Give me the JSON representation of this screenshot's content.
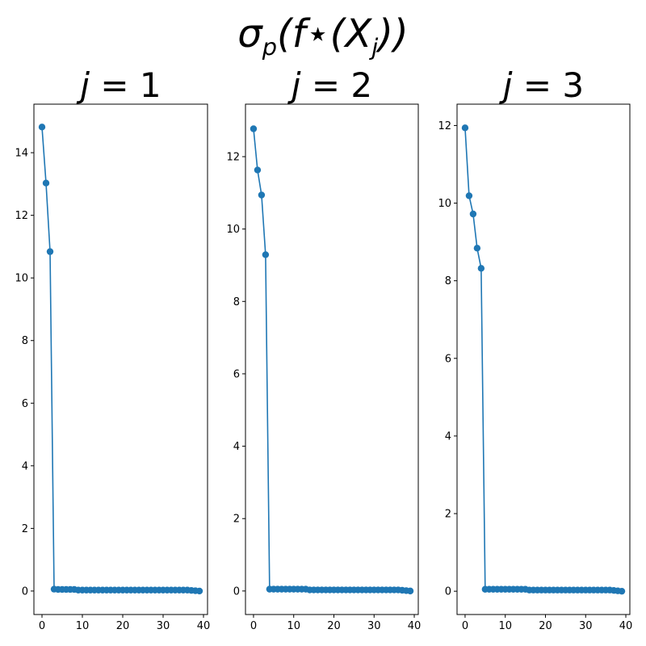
{
  "figure": {
    "suptitle": "σ_p(f⋆(X_j))"
  },
  "chart_data": [
    {
      "type": "line",
      "title": "j = 1",
      "xlabel": "",
      "ylabel": "",
      "color": "#1f77b4",
      "marker": "circle",
      "xlim": [
        -2,
        41
      ],
      "ylim": [
        -0.75,
        15.55
      ],
      "xticks": [
        0,
        10,
        20,
        30,
        40
      ],
      "yticks": [
        0,
        2,
        4,
        6,
        8,
        10,
        12,
        14
      ],
      "series": [
        {
          "x": [
            0,
            1,
            2,
            3,
            4,
            5,
            6,
            7,
            8,
            9,
            10,
            11,
            12,
            13,
            14,
            15,
            16,
            17,
            18,
            19,
            20,
            21,
            22,
            23,
            24,
            25,
            26,
            27,
            28,
            29,
            30,
            31,
            32,
            33,
            34,
            35,
            36,
            37,
            38,
            39
          ],
          "y": [
            14.82,
            13.03,
            10.84,
            0.06,
            0.05,
            0.05,
            0.05,
            0.05,
            0.05,
            0.03,
            0.03,
            0.03,
            0.03,
            0.03,
            0.03,
            0.03,
            0.03,
            0.03,
            0.03,
            0.03,
            0.03,
            0.03,
            0.03,
            0.03,
            0.03,
            0.03,
            0.03,
            0.03,
            0.03,
            0.03,
            0.03,
            0.03,
            0.03,
            0.03,
            0.03,
            0.03,
            0.03,
            0.02,
            0.01,
            0.0
          ]
        }
      ]
    },
    {
      "type": "line",
      "title": "j = 2",
      "xlabel": "",
      "ylabel": "",
      "color": "#1f77b4",
      "marker": "circle",
      "xlim": [
        -2,
        41
      ],
      "ylim": [
        -0.65,
        13.45
      ],
      "xticks": [
        0,
        10,
        20,
        30,
        40
      ],
      "yticks": [
        0,
        2,
        4,
        6,
        8,
        10,
        12
      ],
      "series": [
        {
          "x": [
            0,
            1,
            2,
            3,
            4,
            5,
            6,
            7,
            8,
            9,
            10,
            11,
            12,
            13,
            14,
            15,
            16,
            17,
            18,
            19,
            20,
            21,
            22,
            23,
            24,
            25,
            26,
            27,
            28,
            29,
            30,
            31,
            32,
            33,
            34,
            35,
            36,
            37,
            38,
            39
          ],
          "y": [
            12.77,
            11.63,
            10.94,
            9.29,
            0.05,
            0.05,
            0.05,
            0.05,
            0.05,
            0.05,
            0.05,
            0.05,
            0.05,
            0.05,
            0.03,
            0.03,
            0.03,
            0.03,
            0.03,
            0.03,
            0.03,
            0.03,
            0.03,
            0.03,
            0.03,
            0.03,
            0.03,
            0.03,
            0.03,
            0.03,
            0.03,
            0.03,
            0.03,
            0.03,
            0.03,
            0.03,
            0.03,
            0.02,
            0.01,
            0.0
          ]
        }
      ]
    },
    {
      "type": "line",
      "title": "j = 3",
      "xlabel": "",
      "ylabel": "",
      "color": "#1f77b4",
      "marker": "circle",
      "xlim": [
        -2,
        41
      ],
      "ylim": [
        -0.6,
        12.55
      ],
      "xticks": [
        0,
        10,
        20,
        30,
        40
      ],
      "yticks": [
        0,
        2,
        4,
        6,
        8,
        10,
        12
      ],
      "series": [
        {
          "x": [
            0,
            1,
            2,
            3,
            4,
            5,
            6,
            7,
            8,
            9,
            10,
            11,
            12,
            13,
            14,
            15,
            16,
            17,
            18,
            19,
            20,
            21,
            22,
            23,
            24,
            25,
            26,
            27,
            28,
            29,
            30,
            31,
            32,
            33,
            34,
            35,
            36,
            37,
            38,
            39
          ],
          "y": [
            11.94,
            10.19,
            9.72,
            8.84,
            8.32,
            0.05,
            0.05,
            0.05,
            0.05,
            0.05,
            0.05,
            0.05,
            0.05,
            0.05,
            0.05,
            0.05,
            0.03,
            0.03,
            0.03,
            0.03,
            0.03,
            0.03,
            0.03,
            0.03,
            0.03,
            0.03,
            0.03,
            0.03,
            0.03,
            0.03,
            0.03,
            0.03,
            0.03,
            0.03,
            0.03,
            0.03,
            0.03,
            0.02,
            0.01,
            0.0
          ]
        }
      ]
    }
  ]
}
